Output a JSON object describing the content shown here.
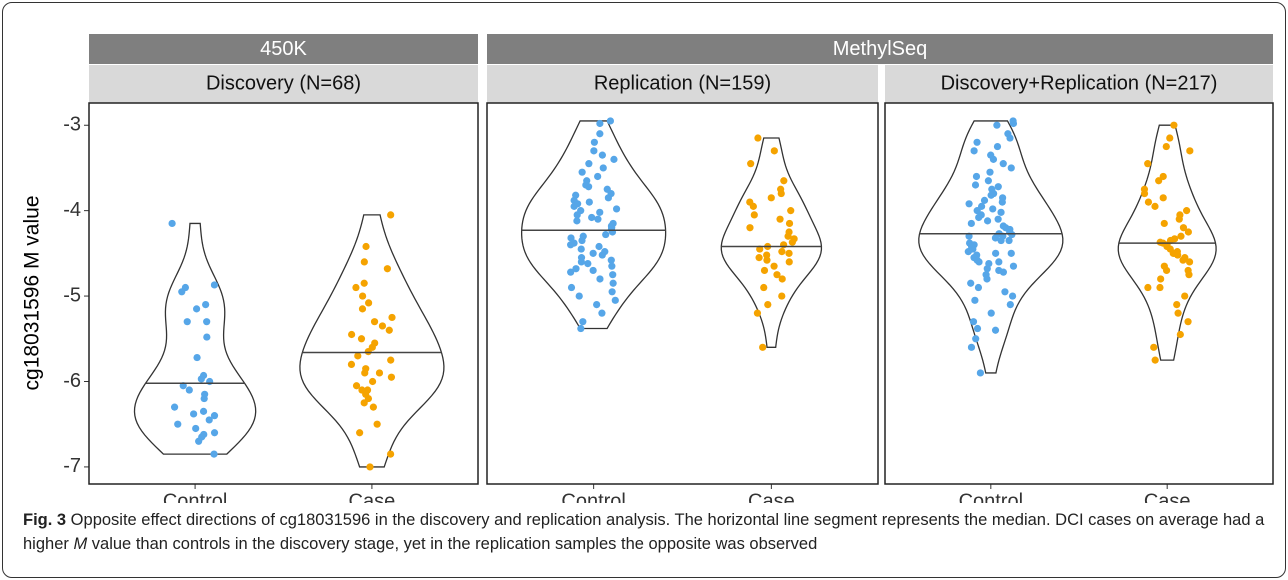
{
  "chart_data": {
    "type": "violin",
    "y_label": "cg18031596 M value",
    "ylim": [
      -7.2,
      -2.74
    ],
    "yticks": [
      -3,
      -4,
      -5,
      -6,
      -7
    ],
    "platforms": [
      {
        "name": "450K",
        "panels": [
          {
            "title": "Discovery (N=68)",
            "series": [
              {
                "name": "Control",
                "color": "#56a6e8",
                "median": -6.02,
                "values": [
                  -4.15,
                  -4.87,
                  -4.9,
                  -4.95,
                  -5.1,
                  -5.15,
                  -5.3,
                  -5.3,
                  -5.48,
                  -5.72,
                  -5.93,
                  -5.97,
                  -6.0,
                  -6.05,
                  -6.1,
                  -6.15,
                  -6.2,
                  -6.3,
                  -6.35,
                  -6.38,
                  -6.4,
                  -6.45,
                  -6.5,
                  -6.55,
                  -6.6,
                  -6.62,
                  -6.65,
                  -6.7,
                  -6.85
                ]
              },
              {
                "name": "Case",
                "color": "#f5a300",
                "median": -5.66,
                "values": [
                  -4.05,
                  -4.42,
                  -4.6,
                  -4.68,
                  -4.85,
                  -4.9,
                  -5.0,
                  -5.08,
                  -5.15,
                  -5.25,
                  -5.3,
                  -5.35,
                  -5.4,
                  -5.45,
                  -5.5,
                  -5.55,
                  -5.6,
                  -5.65,
                  -5.7,
                  -5.75,
                  -5.8,
                  -5.85,
                  -5.9,
                  -5.9,
                  -5.95,
                  -6.0,
                  -6.05,
                  -6.1,
                  -6.1,
                  -6.15,
                  -6.2,
                  -6.25,
                  -6.3,
                  -6.5,
                  -6.6,
                  -6.85,
                  -7.0
                ]
              }
            ]
          }
        ]
      },
      {
        "name": "MethylSeq",
        "panels": [
          {
            "title": "Replication (N=159)",
            "series": [
              {
                "name": "Control",
                "color": "#56a6e8",
                "median": -4.23,
                "values": [
                  -2.95,
                  -2.98,
                  -3.1,
                  -3.2,
                  -3.3,
                  -3.35,
                  -3.4,
                  -3.45,
                  -3.5,
                  -3.55,
                  -3.6,
                  -3.65,
                  -3.7,
                  -3.72,
                  -3.75,
                  -3.8,
                  -3.82,
                  -3.85,
                  -3.88,
                  -3.9,
                  -3.92,
                  -3.95,
                  -3.98,
                  -4.0,
                  -4.02,
                  -4.05,
                  -4.08,
                  -4.1,
                  -4.12,
                  -4.15,
                  -4.18,
                  -4.2,
                  -4.22,
                  -4.25,
                  -4.28,
                  -4.3,
                  -4.32,
                  -4.35,
                  -4.38,
                  -4.4,
                  -4.42,
                  -4.45,
                  -4.48,
                  -4.5,
                  -4.52,
                  -4.55,
                  -4.58,
                  -4.6,
                  -4.62,
                  -4.65,
                  -4.68,
                  -4.7,
                  -4.72,
                  -4.75,
                  -4.8,
                  -4.85,
                  -4.9,
                  -4.95,
                  -5.0,
                  -5.05,
                  -5.1,
                  -5.2,
                  -5.3,
                  -5.38
                ]
              },
              {
                "name": "Case",
                "color": "#f5a300",
                "median": -4.42,
                "values": [
                  -3.15,
                  -3.3,
                  -3.45,
                  -3.65,
                  -3.75,
                  -3.8,
                  -3.85,
                  -3.9,
                  -3.95,
                  -4.0,
                  -4.05,
                  -4.1,
                  -4.15,
                  -4.2,
                  -4.25,
                  -4.3,
                  -4.33,
                  -4.37,
                  -4.4,
                  -4.42,
                  -4.45,
                  -4.48,
                  -4.5,
                  -4.52,
                  -4.55,
                  -4.58,
                  -4.6,
                  -4.65,
                  -4.7,
                  -4.75,
                  -4.8,
                  -4.9,
                  -5.0,
                  -5.1,
                  -5.2,
                  -5.6
                ]
              }
            ]
          },
          {
            "title": "Discovery+Replication (N=217)",
            "series": [
              {
                "name": "Control",
                "color": "#56a6e8",
                "median": -4.27,
                "values": [
                  -2.95,
                  -2.98,
                  -3.0,
                  -3.1,
                  -3.15,
                  -3.2,
                  -3.25,
                  -3.3,
                  -3.35,
                  -3.4,
                  -3.45,
                  -3.5,
                  -3.55,
                  -3.6,
                  -3.65,
                  -3.7,
                  -3.72,
                  -3.75,
                  -3.8,
                  -3.82,
                  -3.85,
                  -3.88,
                  -3.9,
                  -3.92,
                  -3.95,
                  -3.98,
                  -4.0,
                  -4.02,
                  -4.05,
                  -4.08,
                  -4.1,
                  -4.12,
                  -4.15,
                  -4.18,
                  -4.2,
                  -4.22,
                  -4.25,
                  -4.27,
                  -4.28,
                  -4.3,
                  -4.3,
                  -4.32,
                  -4.35,
                  -4.35,
                  -4.38,
                  -4.4,
                  -4.42,
                  -4.45,
                  -4.45,
                  -4.48,
                  -4.5,
                  -4.5,
                  -4.52,
                  -4.55,
                  -4.58,
                  -4.6,
                  -4.6,
                  -4.62,
                  -4.65,
                  -4.68,
                  -4.7,
                  -4.72,
                  -4.75,
                  -4.8,
                  -4.85,
                  -4.9,
                  -4.95,
                  -5.0,
                  -5.05,
                  -5.1,
                  -5.2,
                  -5.3,
                  -5.38,
                  -5.4,
                  -5.5,
                  -5.6,
                  -5.9
                ]
              },
              {
                "name": "Case",
                "color": "#f5a300",
                "median": -4.38,
                "values": [
                  -3.0,
                  -3.15,
                  -3.25,
                  -3.3,
                  -3.45,
                  -3.6,
                  -3.65,
                  -3.75,
                  -3.8,
                  -3.85,
                  -3.9,
                  -3.95,
                  -4.0,
                  -4.05,
                  -4.1,
                  -4.15,
                  -4.2,
                  -4.25,
                  -4.3,
                  -4.33,
                  -4.35,
                  -4.37,
                  -4.38,
                  -4.4,
                  -4.42,
                  -4.45,
                  -4.48,
                  -4.5,
                  -4.5,
                  -4.52,
                  -4.55,
                  -4.58,
                  -4.6,
                  -4.65,
                  -4.7,
                  -4.7,
                  -4.75,
                  -4.8,
                  -4.9,
                  -4.9,
                  -5.0,
                  -5.1,
                  -5.2,
                  -5.3,
                  -5.45,
                  -5.6,
                  -5.75
                ]
              }
            ]
          }
        ]
      }
    ]
  },
  "caption": {
    "label": "Fig. 3",
    "text_before": " Opposite effect directions of cg18031596 in the discovery and replication analysis. The horizontal line segment represents the median. DCI cases on average had a higher ",
    "italic": "M",
    "text_after": " value than controls in the discovery stage, yet in the replication samples the opposite was observed"
  }
}
